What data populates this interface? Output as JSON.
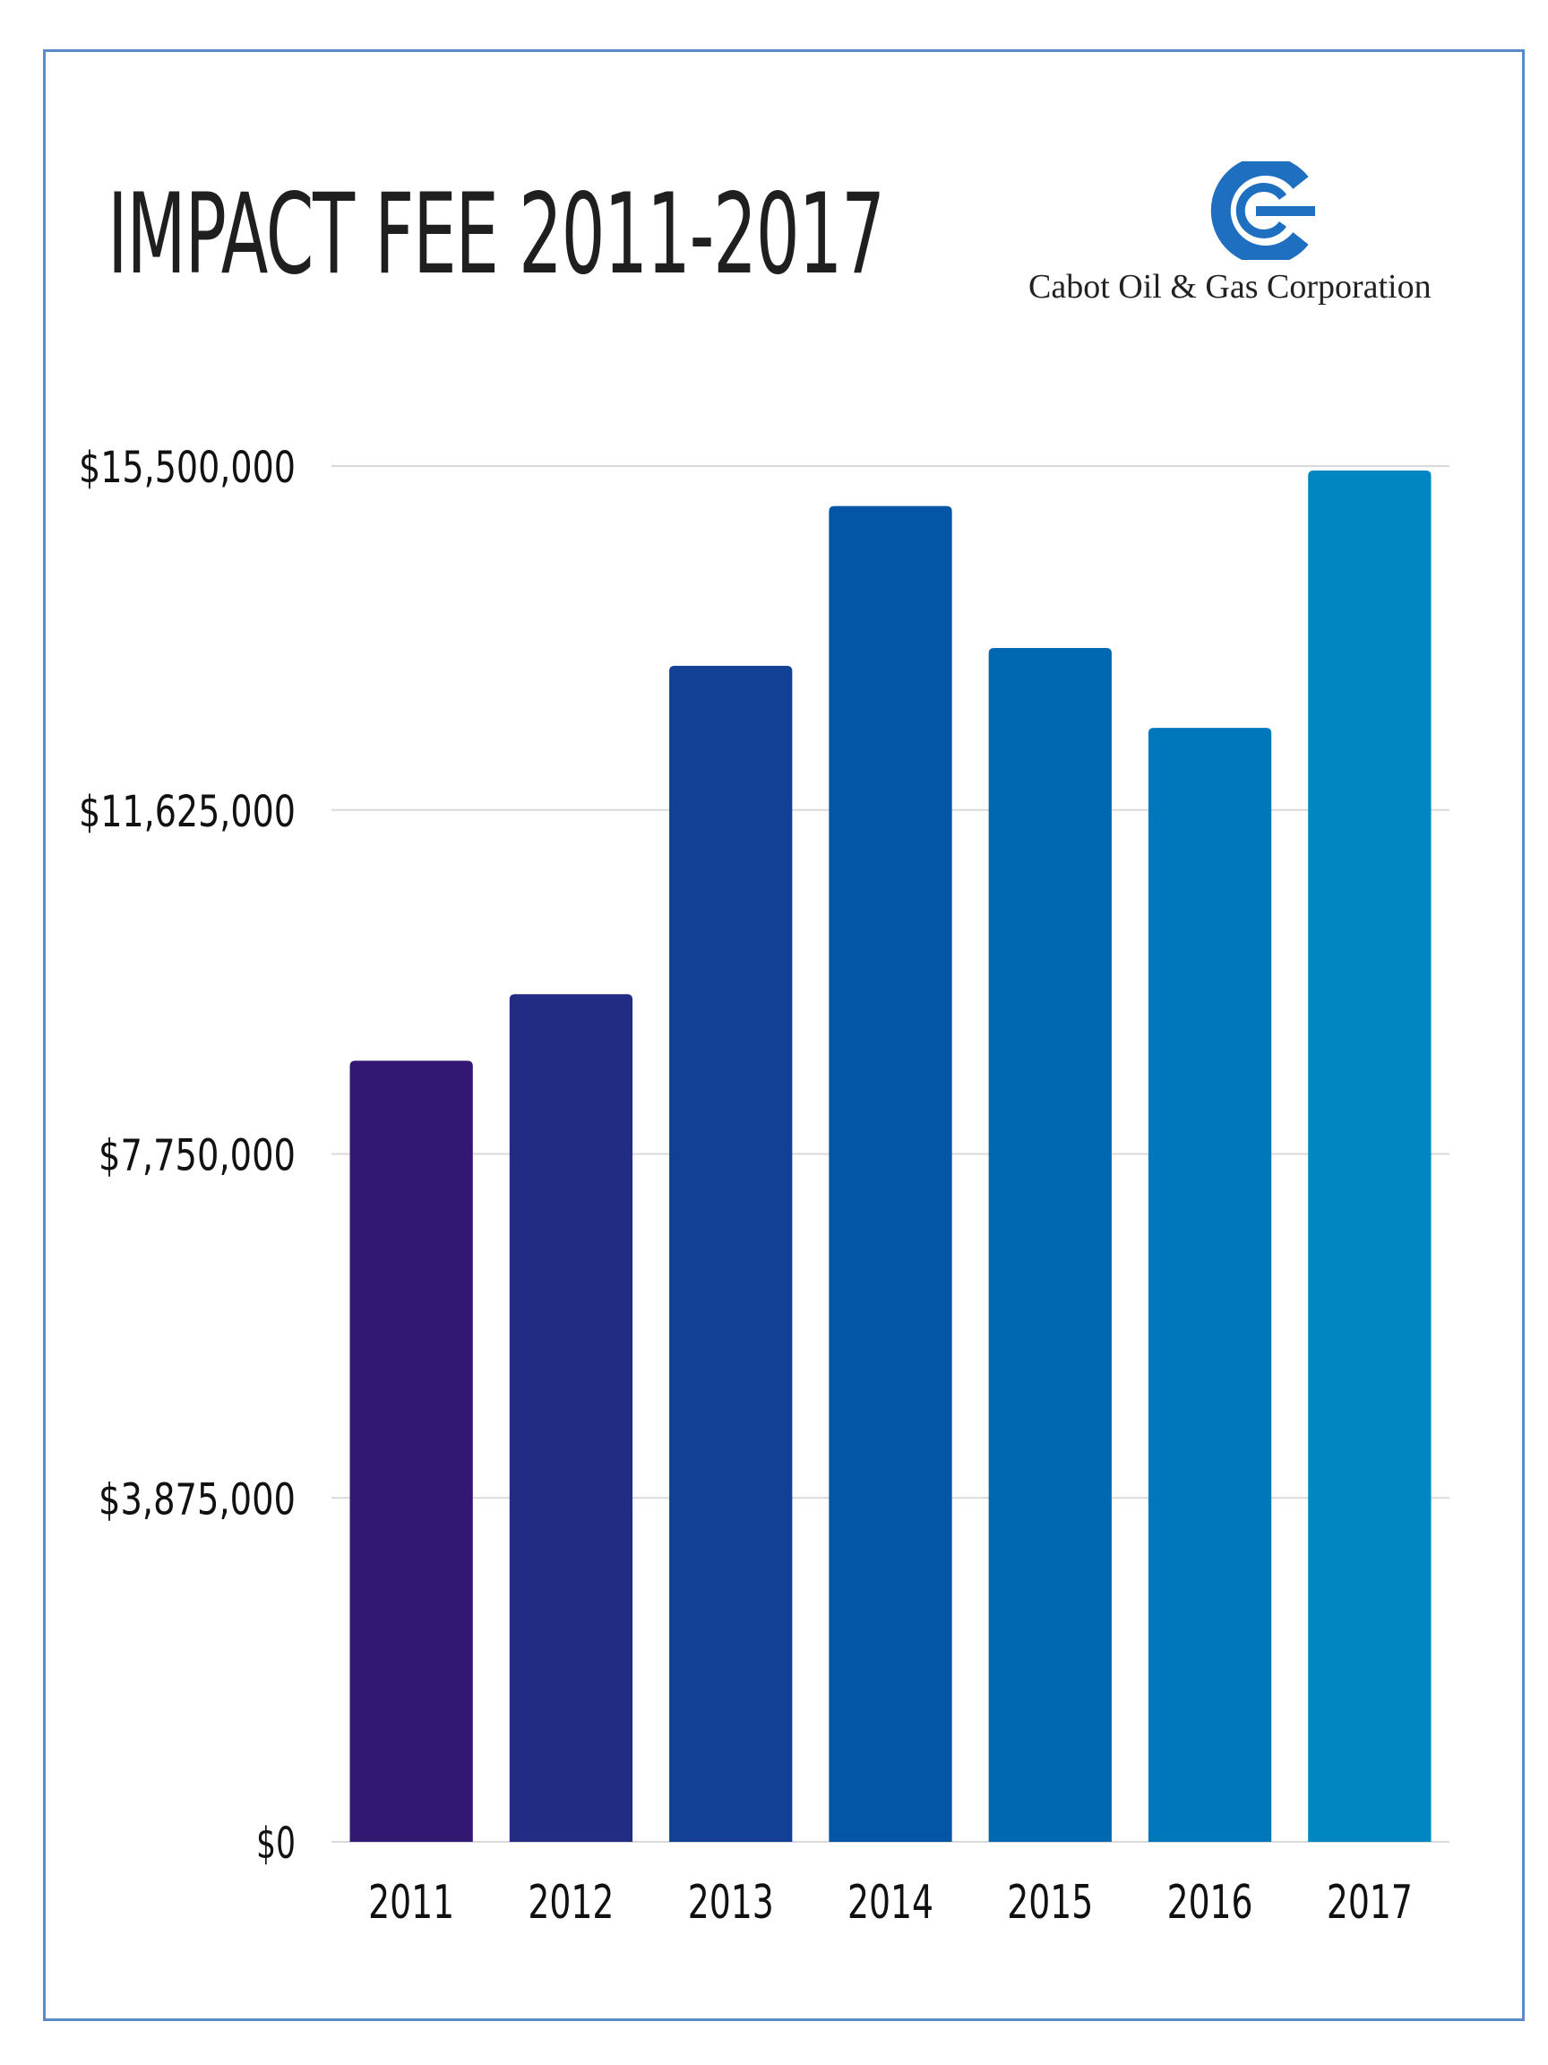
{
  "header": {
    "title": "IMPACT FEE 2011-2017",
    "company": "Cabot Oil & Gas Corporation",
    "logo_icon": "cabot-c-logo-icon",
    "logo_color": "#1f6fc0"
  },
  "chart_data": {
    "type": "bar",
    "title": "IMPACT FEE 2011-2017",
    "xlabel": "",
    "ylabel": "",
    "categories": [
      "2011",
      "2012",
      "2013",
      "2014",
      "2015",
      "2016",
      "2017"
    ],
    "values": [
      8800000,
      9550000,
      13250000,
      15050000,
      13450000,
      12550000,
      15450000
    ],
    "colors": [
      "#321873",
      "#232c85",
      "#114094",
      "#0355a6",
      "#0068b1",
      "#0077bb",
      "#0086c1"
    ],
    "ylim": [
      0,
      15500000
    ],
    "yticks": [
      0,
      3875000,
      7750000,
      11625000,
      15500000
    ],
    "ytick_labels": [
      "$0",
      "$3,875,000",
      "$7,750,000",
      "$11,625,000",
      "$15,500,000"
    ],
    "grid": true,
    "legend": "none"
  }
}
